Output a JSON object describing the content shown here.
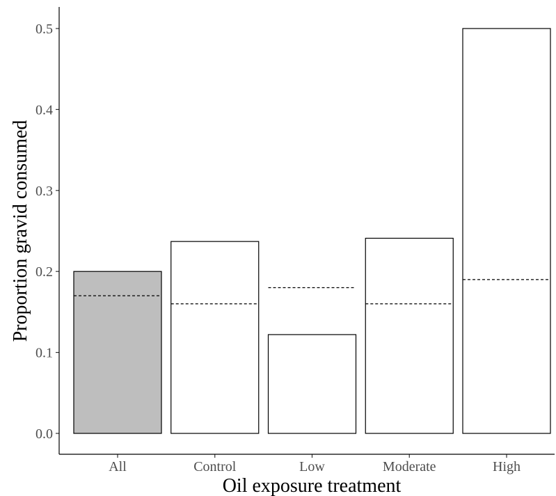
{
  "chart_data": {
    "type": "bar",
    "title": "",
    "xlabel": "Oil exposure treatment",
    "ylabel": "Proportion gravid consumed",
    "categories": [
      "All",
      "Control",
      "Low",
      "Moderate",
      "High"
    ],
    "values": [
      0.2,
      0.237,
      0.122,
      0.241,
      0.5
    ],
    "reference_values": [
      0.17,
      0.16,
      0.18,
      0.16,
      0.19
    ],
    "reference_style": "dashed",
    "bar_fills": [
      "#bebebe",
      "#ffffff",
      "#ffffff",
      "#ffffff",
      "#ffffff"
    ],
    "ylim": [
      0,
      0.5
    ],
    "yticks": [
      "0.0",
      "0.1",
      "0.2",
      "0.3",
      "0.4",
      "0.5"
    ],
    "grid": false,
    "legend": "none"
  }
}
